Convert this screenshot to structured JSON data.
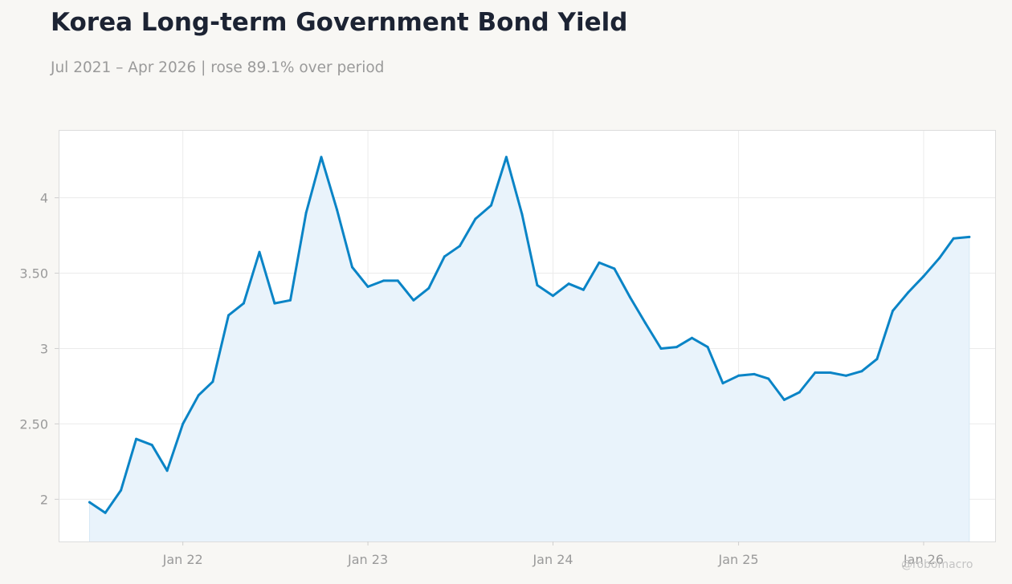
{
  "header": {
    "title": "Korea Long-term Government Bond Yield",
    "subtitle": "Jul 2021 – Apr 2026 | rose 89.1% over period"
  },
  "watermark": "@robomacro",
  "colors": {
    "line": "#0a84c6",
    "fill": "#e9f3fb",
    "grid": "#ebebeb",
    "frame": "#dcdcdc",
    "background": "#f8f7f4",
    "plot_background": "#ffffff",
    "tick_text": "#9a9a9a",
    "title_text": "#1c2333"
  },
  "chart_data": {
    "type": "area",
    "title": "Korea Long-term Government Bond Yield",
    "subtitle": "Jul 2021 – Apr 2026 | rose 89.1% over period",
    "xlabel": "",
    "ylabel": "",
    "ylim": [
      1.72,
      4.45
    ],
    "xlim": [
      "2021-05-01",
      "2026-05-22"
    ],
    "grid": true,
    "legend": "none",
    "x_ticks": [
      {
        "date": "2022-01-01",
        "label": "Jan 22"
      },
      {
        "date": "2023-01-01",
        "label": "Jan 23"
      },
      {
        "date": "2024-01-01",
        "label": "Jan 24"
      },
      {
        "date": "2025-01-01",
        "label": "Jan 25"
      },
      {
        "date": "2026-01-01",
        "label": "Jan 26"
      }
    ],
    "y_ticks": [
      {
        "value": 2.0,
        "label": "2"
      },
      {
        "value": 2.5,
        "label": "2.50"
      },
      {
        "value": 3.0,
        "label": "3"
      },
      {
        "value": 3.5,
        "label": "3.50"
      },
      {
        "value": 4.0,
        "label": "4"
      }
    ],
    "series": [
      {
        "x": [
          "2021-07",
          "2021-08",
          "2021-09",
          "2021-10",
          "2021-11",
          "2021-12",
          "2022-01",
          "2022-02",
          "2022-03",
          "2022-04",
          "2022-05",
          "2022-06",
          "2022-07",
          "2022-08",
          "2022-09",
          "2022-10",
          "2022-11",
          "2022-12",
          "2023-01",
          "2023-02",
          "2023-03",
          "2023-04",
          "2023-05",
          "2023-06",
          "2023-07",
          "2023-08",
          "2023-09",
          "2023-10",
          "2023-11",
          "2023-12",
          "2024-01",
          "2024-02",
          "2024-03",
          "2024-04",
          "2024-05",
          "2024-06",
          "2024-07",
          "2024-08",
          "2024-09",
          "2024-10",
          "2024-11",
          "2024-12",
          "2025-01",
          "2025-02",
          "2025-03",
          "2025-04",
          "2025-05",
          "2025-06",
          "2025-07",
          "2025-08",
          "2025-09",
          "2025-10",
          "2025-11",
          "2025-12",
          "2026-01",
          "2026-02",
          "2026-03",
          "2026-04"
        ],
        "values": [
          1.98,
          1.91,
          2.06,
          2.4,
          2.36,
          2.19,
          2.5,
          2.69,
          2.78,
          3.22,
          3.3,
          3.64,
          3.3,
          3.32,
          3.9,
          4.27,
          3.92,
          3.54,
          3.41,
          3.45,
          3.45,
          3.32,
          3.4,
          3.61,
          3.68,
          3.86,
          3.95,
          4.27,
          3.89,
          3.42,
          3.35,
          3.43,
          3.39,
          3.57,
          3.53,
          3.34,
          3.17,
          3.0,
          3.01,
          3.07,
          3.01,
          2.77,
          2.82,
          2.83,
          2.8,
          2.66,
          2.71,
          2.84,
          2.84,
          2.82,
          2.85,
          2.93,
          3.25,
          3.37,
          3.48,
          3.6,
          3.73,
          3.74
        ]
      }
    ]
  }
}
